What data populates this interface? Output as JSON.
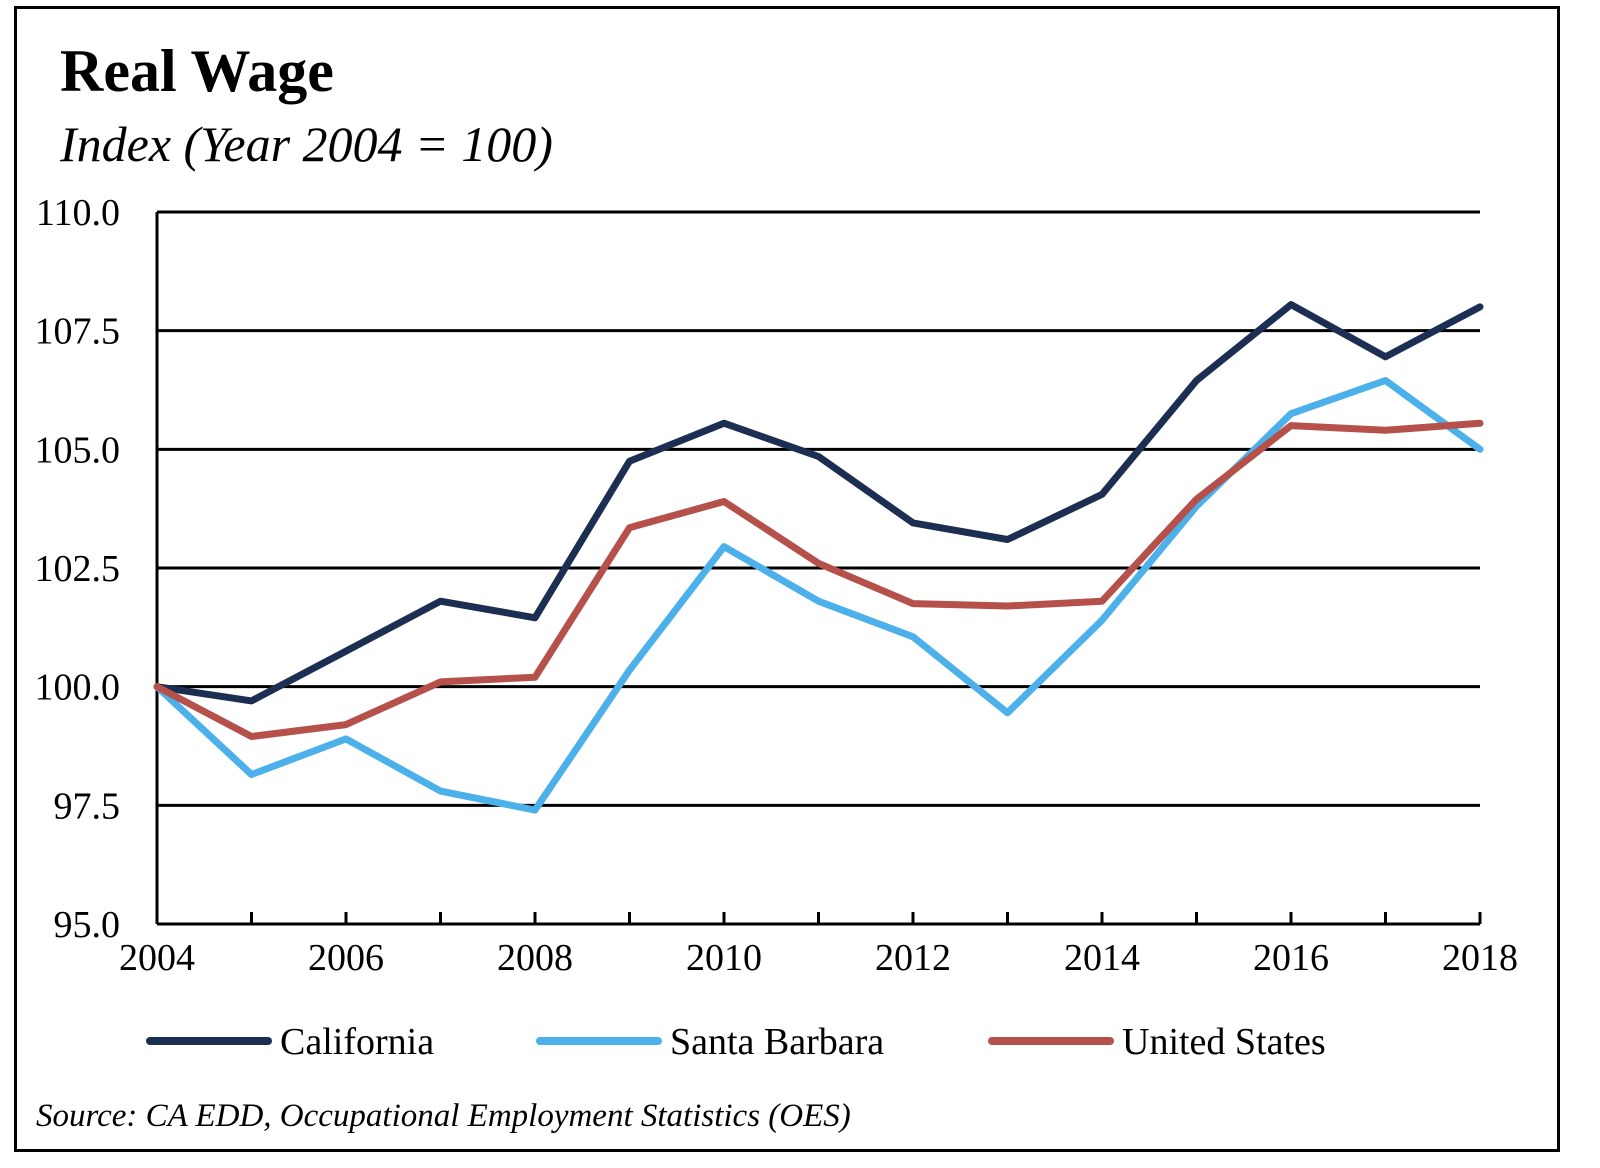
{
  "chart_data": {
    "type": "line",
    "title": "Real Wage",
    "subtitle": "Index (Year 2004 = 100)",
    "xlabel": "",
    "ylabel": "",
    "x": [
      2004,
      2005,
      2006,
      2007,
      2008,
      2009,
      2010,
      2011,
      2012,
      2013,
      2014,
      2015,
      2016,
      2017,
      2018
    ],
    "x_tick_labels": [
      "2004",
      "2006",
      "2008",
      "2010",
      "2012",
      "2014",
      "2016",
      "2018"
    ],
    "y_tick_labels": [
      "110.0",
      "107.5",
      "105.0",
      "102.5",
      "100.0",
      "97.5",
      "95.0"
    ],
    "ylim": [
      95.0,
      110.0
    ],
    "xlim": [
      2004,
      2018
    ],
    "grid": "horizontal",
    "legend_position": "bottom",
    "series": [
      {
        "name": "California",
        "color": "#1c2f52",
        "values": [
          100.0,
          99.7,
          100.75,
          101.8,
          101.45,
          104.75,
          105.55,
          104.85,
          103.45,
          103.1,
          104.05,
          106.45,
          108.05,
          106.95,
          108.0
        ]
      },
      {
        "name": "Santa Barbara",
        "color": "#4cb0ea",
        "values": [
          100.0,
          98.15,
          98.9,
          97.8,
          97.4,
          100.35,
          102.95,
          101.8,
          101.05,
          99.45,
          101.4,
          103.8,
          105.75,
          106.45,
          105.0
        ]
      },
      {
        "name": "United States",
        "color": "#b5504b",
        "values": [
          100.0,
          98.95,
          99.2,
          100.1,
          100.2,
          103.35,
          103.9,
          102.6,
          101.75,
          101.7,
          101.8,
          103.95,
          105.5,
          105.4,
          105.55
        ]
      }
    ],
    "source": "Source:  CA EDD, Occupational Employment Statistics (OES)"
  }
}
